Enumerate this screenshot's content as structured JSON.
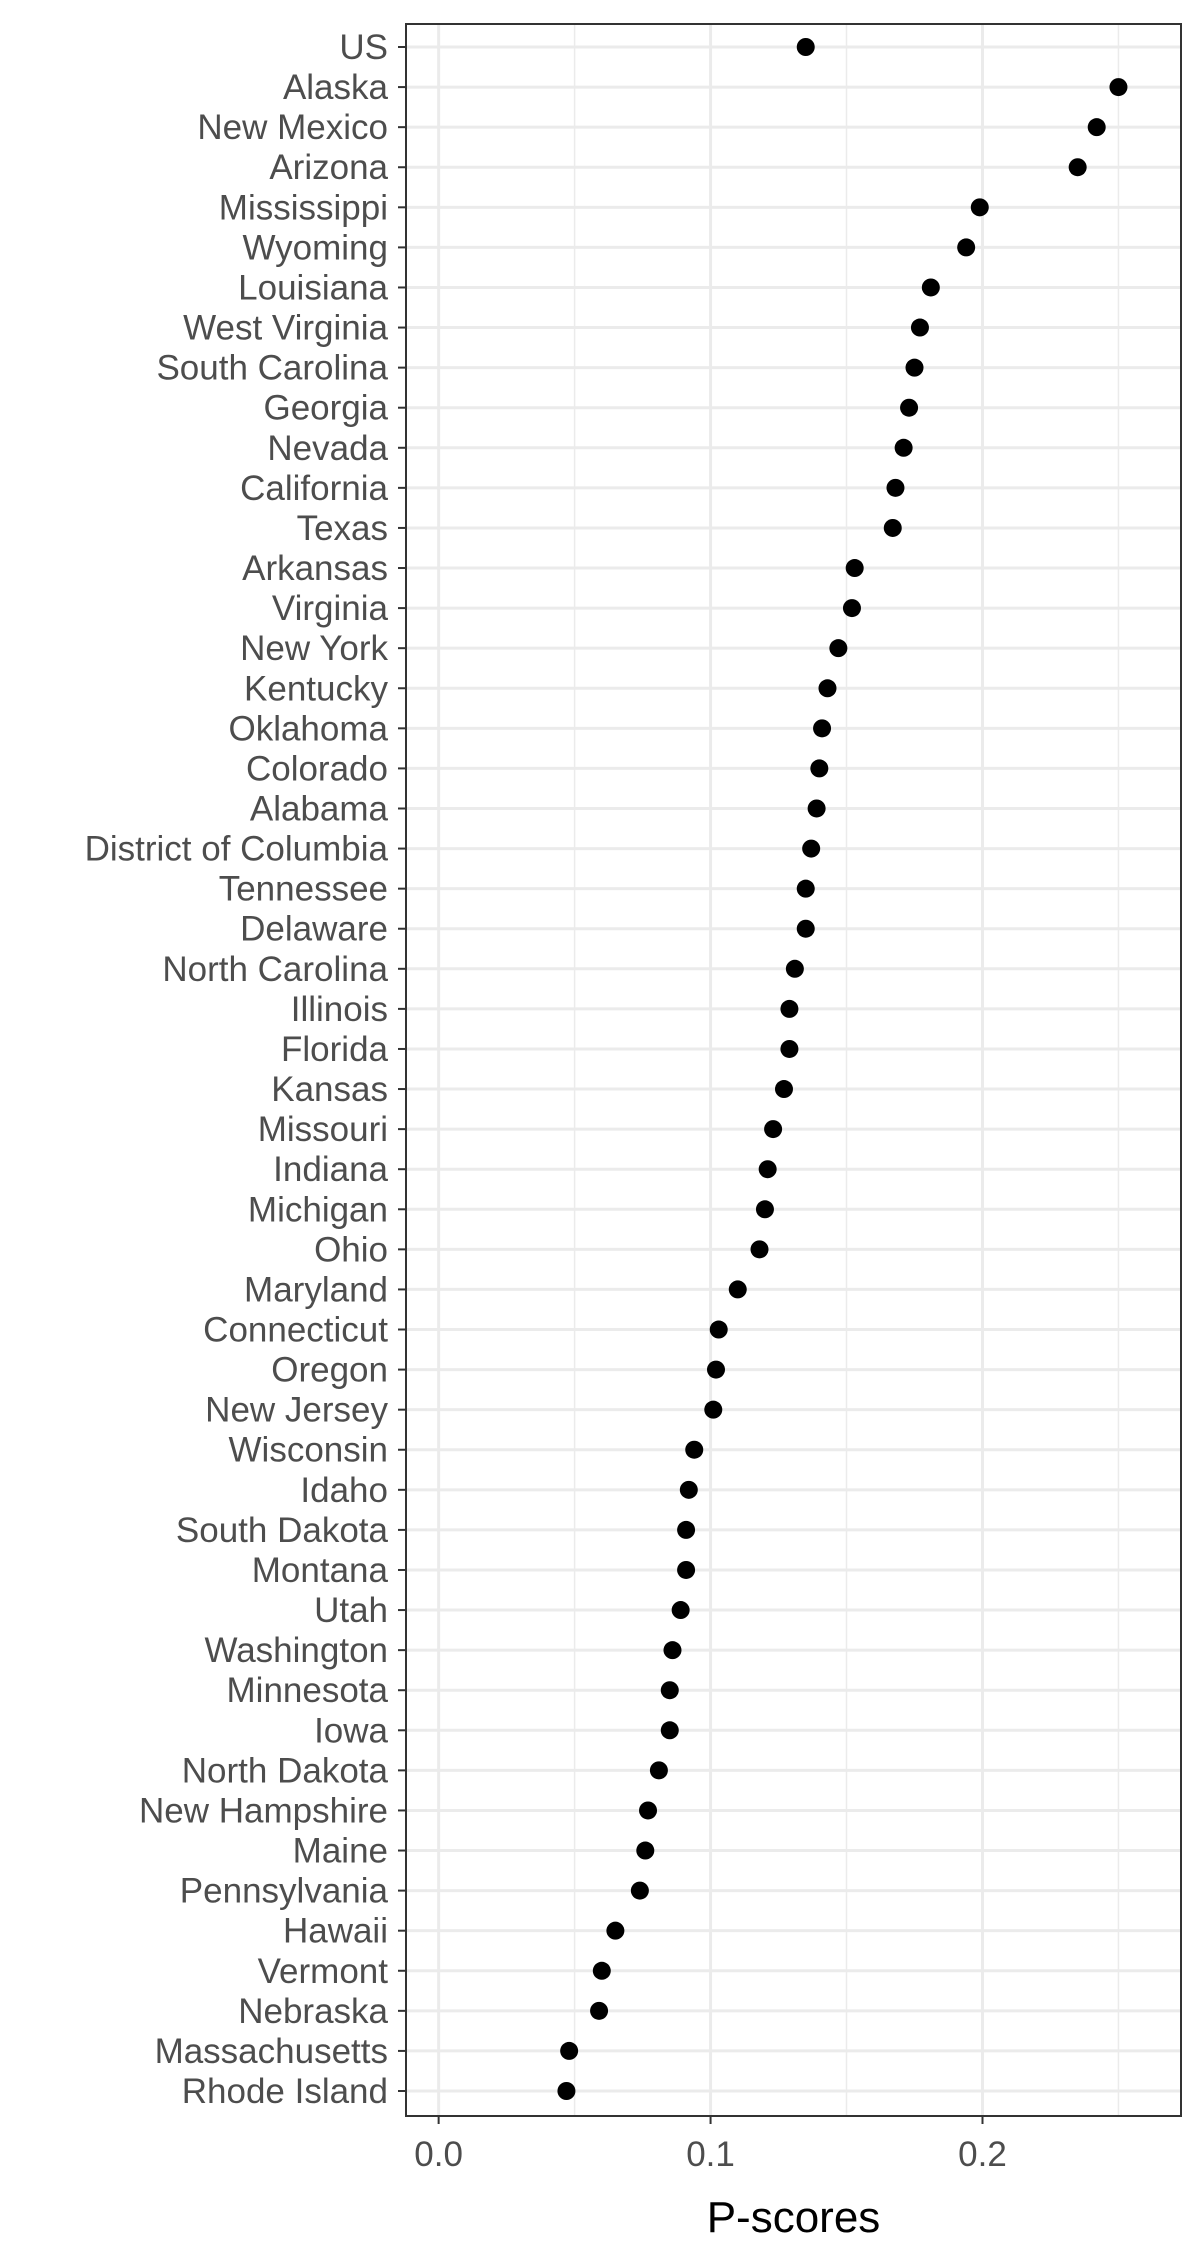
{
  "chart_data": {
    "type": "scatter",
    "title": "",
    "xlabel": "P-scores",
    "ylabel": "",
    "xlim": [
      -0.012,
      0.273
    ],
    "x_ticks": [
      0.0,
      0.1,
      0.2
    ],
    "x_tick_labels": [
      "0.0",
      "0.1",
      "0.2"
    ],
    "grid": true,
    "legend": "none",
    "categories": [
      "US",
      "Alaska",
      "New Mexico",
      "Arizona",
      "Mississippi",
      "Wyoming",
      "Louisiana",
      "West Virginia",
      "South Carolina",
      "Georgia",
      "Nevada",
      "California",
      "Texas",
      "Arkansas",
      "Virginia",
      "New York",
      "Kentucky",
      "Oklahoma",
      "Colorado",
      "Alabama",
      "District of Columbia",
      "Tennessee",
      "Delaware",
      "North Carolina",
      "Illinois",
      "Florida",
      "Kansas",
      "Missouri",
      "Indiana",
      "Michigan",
      "Ohio",
      "Maryland",
      "Connecticut",
      "Oregon",
      "New Jersey",
      "Wisconsin",
      "Idaho",
      "South Dakota",
      "Montana",
      "Utah",
      "Washington",
      "Minnesota",
      "Iowa",
      "North Dakota",
      "New Hampshire",
      "Maine",
      "Pennsylvania",
      "Hawaii",
      "Vermont",
      "Nebraska",
      "Massachusetts",
      "Rhode Island"
    ],
    "values": [
      0.135,
      0.25,
      0.242,
      0.235,
      0.199,
      0.194,
      0.181,
      0.177,
      0.175,
      0.173,
      0.171,
      0.168,
      0.167,
      0.153,
      0.152,
      0.147,
      0.143,
      0.141,
      0.14,
      0.139,
      0.137,
      0.135,
      0.135,
      0.131,
      0.129,
      0.129,
      0.127,
      0.123,
      0.121,
      0.12,
      0.118,
      0.11,
      0.103,
      0.102,
      0.101,
      0.094,
      0.092,
      0.091,
      0.091,
      0.089,
      0.086,
      0.085,
      0.085,
      0.081,
      0.077,
      0.076,
      0.074,
      0.065,
      0.06,
      0.059,
      0.048,
      0.047
    ]
  },
  "colors": {
    "point": "#000000",
    "grid": "#ebebeb",
    "panel_border": "#333333",
    "tick_text": "#4d4d4d",
    "axis_title": "#000000",
    "background": "#ffffff"
  }
}
